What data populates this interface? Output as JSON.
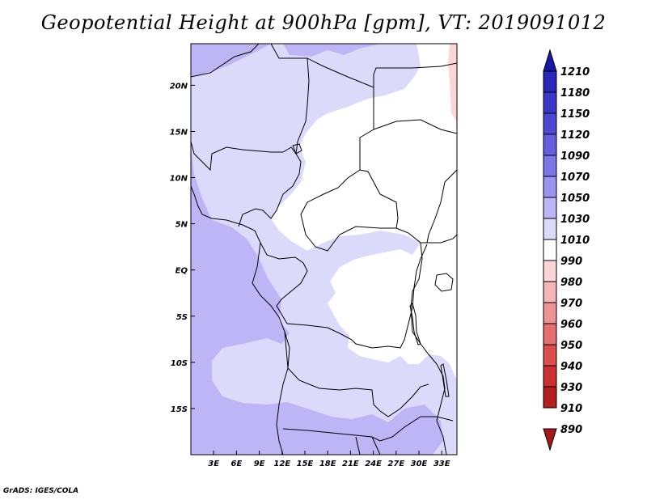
{
  "title": "Geopotential Height at 900hPa [gpm], VT: 2019091012",
  "credit": "GrADS: IGES/COLA",
  "colors": {
    "background_field": "#bdb5f5",
    "frame": "#000000",
    "boundary": "#000000"
  },
  "map": {
    "lon_range": [
      0,
      35
    ],
    "lat_range": [
      -20,
      24.5
    ],
    "lon_ticks": [
      "3E",
      "6E",
      "9E",
      "12E",
      "15E",
      "18E",
      "21E",
      "24E",
      "27E",
      "30E",
      "33E"
    ],
    "lat_ticks": [
      "20N",
      "15N",
      "10N",
      "5N",
      "EQ",
      "5S",
      "10S",
      "15S"
    ]
  },
  "colorbar": {
    "levels": [
      "1210",
      "1180",
      "1150",
      "1120",
      "1090",
      "1070",
      "1050",
      "1030",
      "1010",
      "990",
      "980",
      "970",
      "960",
      "950",
      "940",
      "930",
      "910",
      "890"
    ],
    "colors": [
      "#1a17a8",
      "#2a27bb",
      "#3b37c8",
      "#4c48d4",
      "#6260df",
      "#7a78e8",
      "#9995f0",
      "#bdb5f5",
      "#dcdafb",
      "#ffffff",
      "#fcd6d6",
      "#f5b5b5",
      "#ee9393",
      "#e56f6f",
      "#db4c4c",
      "#cc3030",
      "#b51e1e",
      "#a31818"
    ]
  }
}
